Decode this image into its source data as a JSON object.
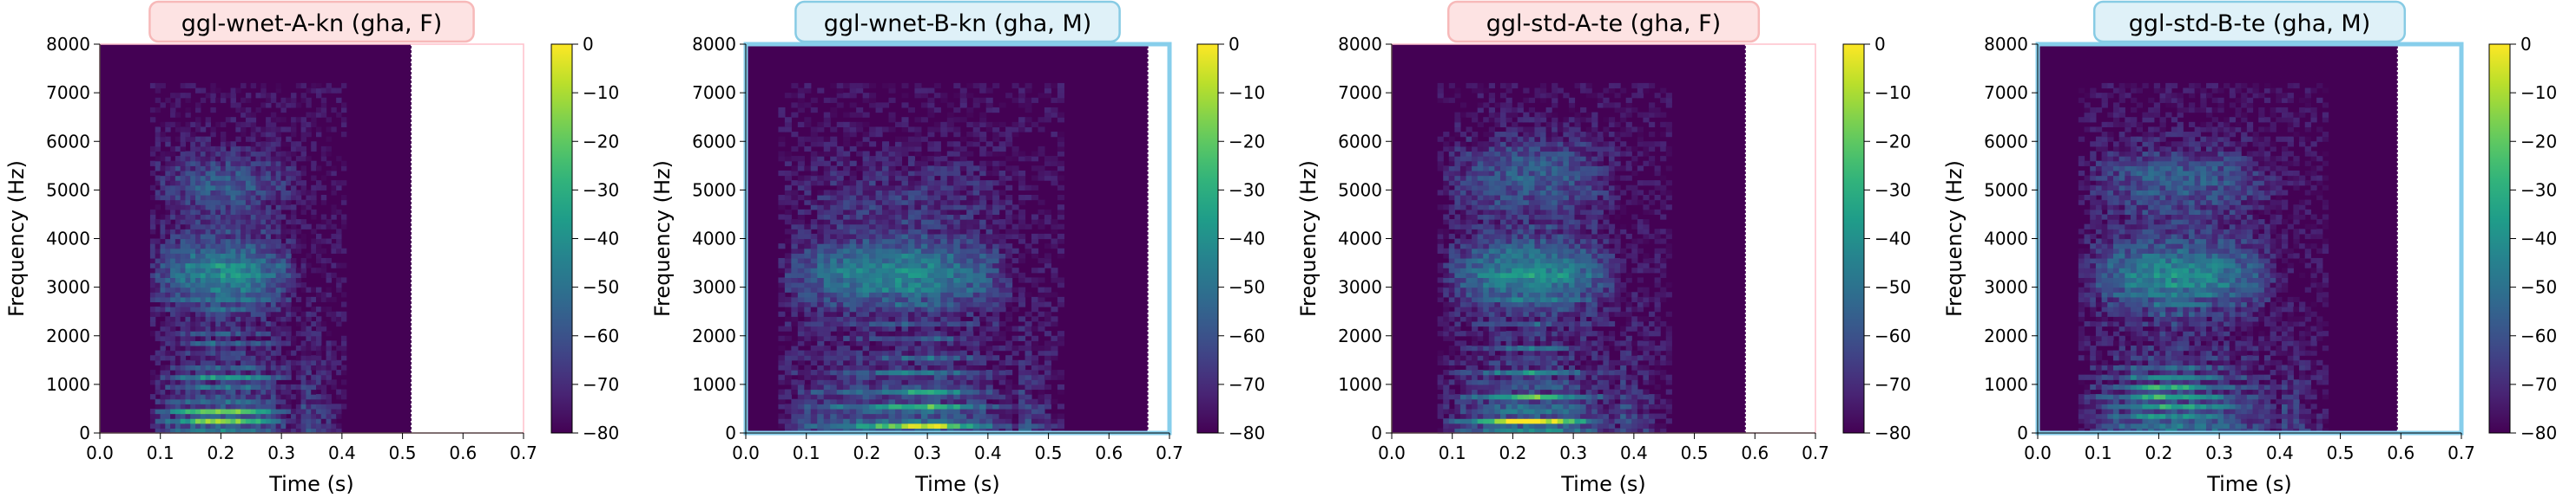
{
  "colorbar": {
    "ticks": [
      "0",
      "−10",
      "−20",
      "−30",
      "−40",
      "−50",
      "−60",
      "−70",
      "−80"
    ],
    "range": [
      -80,
      0
    ]
  },
  "chart_data": [
    {
      "type": "heatmap",
      "title": "ggl-wnet-A-kn (gha, F)",
      "title_style": {
        "bg": "#fde3e3",
        "border": "#f7b9b9"
      },
      "frame_color": "#ffc0cb",
      "xlabel": "Time (s)",
      "ylabel": "Frequency (Hz)",
      "xlim": [
        0,
        0.7
      ],
      "ylim": [
        0,
        8000
      ],
      "xticks": [
        "0.0",
        "0.1",
        "0.2",
        "0.3",
        "0.4",
        "0.5",
        "0.6",
        "0.7"
      ],
      "yticks": [
        "0",
        "1000",
        "2000",
        "3000",
        "4000",
        "5000",
        "6000",
        "7000",
        "8000"
      ],
      "data_end_s": 0.515,
      "speech_start_s": 0.08,
      "speech_end_s": 0.33,
      "speech_peak_s": 0.2,
      "harmonic_spacing_hz": 230,
      "energy_ceiling_hz": 5200
    },
    {
      "type": "heatmap",
      "title": "ggl-wnet-B-kn (gha, M)",
      "title_style": {
        "bg": "#dff1f8",
        "border": "#87cbe4"
      },
      "frame_color": "#87ceeb",
      "xlabel": "Time (s)",
      "ylabel": "Frequency (Hz)",
      "xlim": [
        0,
        0.7
      ],
      "ylim": [
        0,
        8000
      ],
      "xticks": [
        "0.0",
        "0.1",
        "0.2",
        "0.3",
        "0.4",
        "0.5",
        "0.6",
        "0.7"
      ],
      "yticks": [
        "0",
        "1000",
        "2000",
        "3000",
        "4000",
        "5000",
        "6000",
        "7000",
        "8000"
      ],
      "data_end_s": 0.665,
      "speech_start_s": 0.05,
      "speech_end_s": 0.45,
      "speech_peak_s": 0.3,
      "harmonic_spacing_hz": 140,
      "energy_ceiling_hz": 4500
    },
    {
      "type": "heatmap",
      "title": "ggl-std-A-te (gha, F)",
      "title_style": {
        "bg": "#fde3e3",
        "border": "#f7b9b9"
      },
      "frame_color": "#ffc0cb",
      "xlabel": "Time (s)",
      "ylabel": "Frequency (Hz)",
      "xlim": [
        0,
        0.7
      ],
      "ylim": [
        0,
        8000
      ],
      "xticks": [
        "0.0",
        "0.1",
        "0.2",
        "0.3",
        "0.4",
        "0.5",
        "0.6",
        "0.7"
      ],
      "yticks": [
        "0",
        "1000",
        "2000",
        "3000",
        "4000",
        "5000",
        "6000",
        "7000",
        "8000"
      ],
      "data_end_s": 0.585,
      "speech_start_s": 0.08,
      "speech_end_s": 0.38,
      "speech_peak_s": 0.23,
      "harmonic_spacing_hz": 250,
      "energy_ceiling_hz": 6000
    },
    {
      "type": "heatmap",
      "title": "ggl-std-B-te (gha, M)",
      "title_style": {
        "bg": "#dff1f8",
        "border": "#87cbe4"
      },
      "frame_color": "#87ceeb",
      "xlabel": "Time (s)",
      "ylabel": "Frequency (Hz)",
      "xlim": [
        0,
        0.7
      ],
      "ylim": [
        0,
        8000
      ],
      "xticks": [
        "0.0",
        "0.1",
        "0.2",
        "0.3",
        "0.4",
        "0.5",
        "0.6",
        "0.7"
      ],
      "yticks": [
        "0",
        "1000",
        "2000",
        "3000",
        "4000",
        "5000",
        "6000",
        "7000",
        "8000"
      ],
      "data_end_s": 0.595,
      "speech_start_s": 0.07,
      "speech_end_s": 0.4,
      "speech_peak_s": 0.21,
      "harmonic_spacing_hz": 190,
      "energy_ceiling_hz": 5500
    }
  ]
}
